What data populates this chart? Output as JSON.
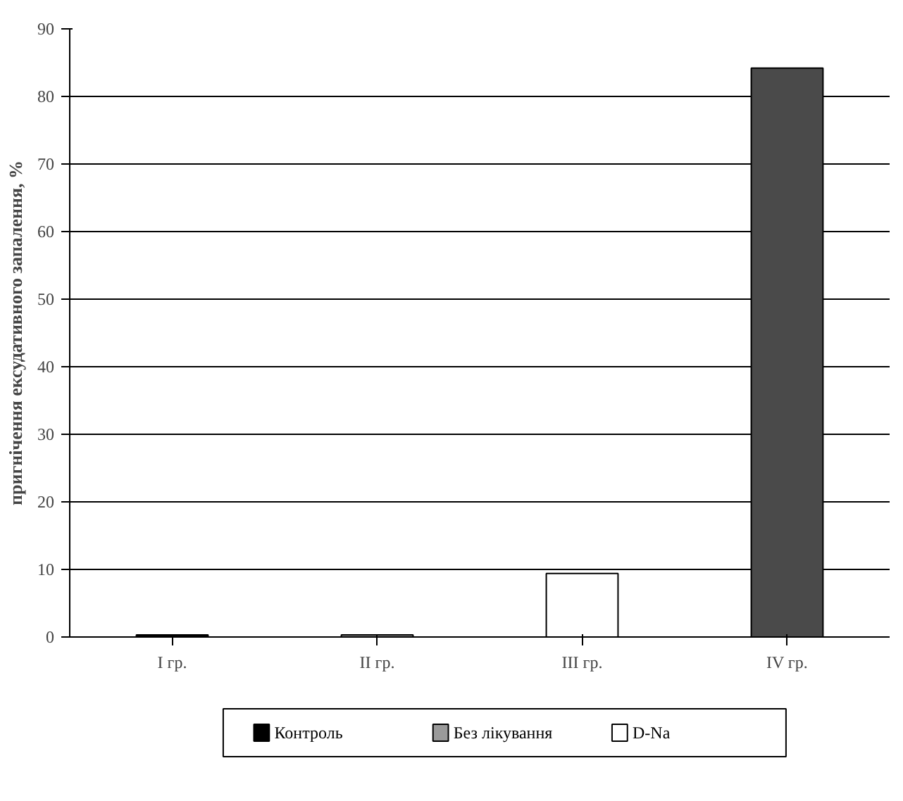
{
  "chart_data": {
    "type": "bar",
    "ylabel": "пригнічення ексудативного запалення, %",
    "categories": [
      "I гр.",
      "II гр.",
      "III гр.",
      "IV гр."
    ],
    "series": [
      {
        "name": "Контроль",
        "color": "#000000",
        "values": [
          0.3,
          null,
          null,
          null
        ]
      },
      {
        "name": "Без лікування",
        "color": "#9a9a9a",
        "values": [
          null,
          0.3,
          null,
          null
        ]
      },
      {
        "name": "D-Na",
        "color": "#ffffff",
        "values": [
          null,
          null,
          9.4,
          null
        ]
      },
      {
        "color": "#4a4a4a",
        "values": [
          null,
          null,
          null,
          84.2
        ]
      }
    ],
    "stacked": true,
    "ylim": [
      0,
      90
    ],
    "yticks": [
      0,
      10,
      20,
      30,
      40,
      50,
      60,
      70,
      80,
      90
    ],
    "grid": "y",
    "legend": "bottom"
  }
}
